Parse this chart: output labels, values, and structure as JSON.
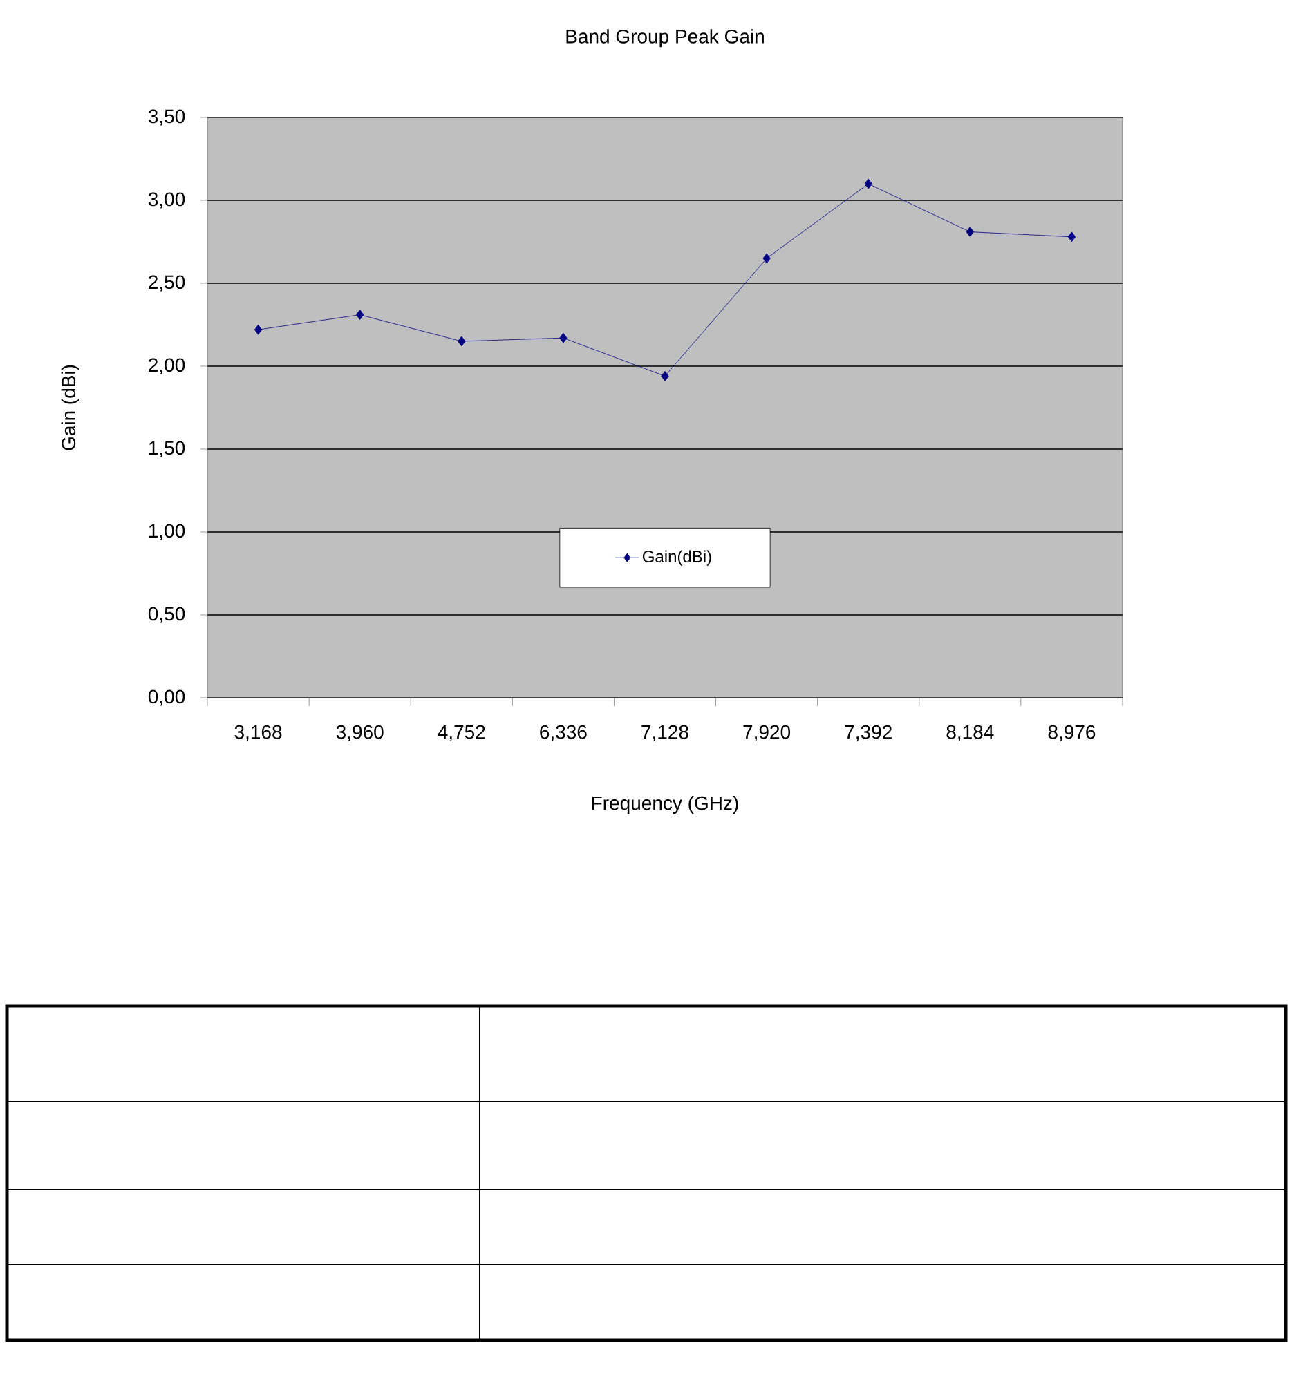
{
  "chart_data": {
    "type": "line",
    "title": "Band Group Peak Gain",
    "xlabel": "Frequency (GHz)",
    "ylabel": "Gain (dBi)",
    "categories": [
      "3,168",
      "3,960",
      "4,752",
      "6,336",
      "7,128",
      "7,920",
      "7,392",
      "8,184",
      "8,976"
    ],
    "series": [
      {
        "name": "Gain(dBi)",
        "color": "#000080",
        "values": [
          2.22,
          2.31,
          2.15,
          2.17,
          1.94,
          2.65,
          3.1,
          2.81,
          2.78
        ]
      }
    ],
    "ylim": [
      0,
      3.5
    ],
    "yticks": [
      {
        "value": 0,
        "label": "0,00"
      },
      {
        "value": 0.5,
        "label": "0,50"
      },
      {
        "value": 1,
        "label": "1,00"
      },
      {
        "value": 1.5,
        "label": "1,50"
      },
      {
        "value": 2,
        "label": "2,00"
      },
      {
        "value": 2.5,
        "label": "2,50"
      },
      {
        "value": 3,
        "label": "3,00"
      },
      {
        "value": 3.5,
        "label": "3,50"
      }
    ],
    "grid": "y",
    "legend": "bottom",
    "marker": "diamond",
    "line_style": "solid"
  }
}
